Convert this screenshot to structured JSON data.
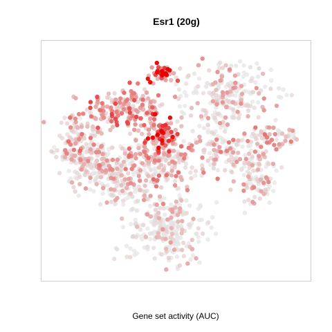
{
  "chart_data": {
    "type": "scatter",
    "title": "Esr1 (20g)",
    "xlabel": "Gene set activity (AUC)",
    "ylabel": "",
    "axes_shown": false,
    "grid": false,
    "legend": "none",
    "colors": {
      "low": "#e6e6e6",
      "high": "#e60000",
      "frame": "#cfcfcf"
    },
    "color_scale": "Gene set activity (AUC) low → high",
    "clusters": [
      {
        "name": "top-left",
        "cx": 0.3,
        "cy": 0.73,
        "sx": 0.08,
        "sy": 0.05,
        "n": 180,
        "act": 0.45
      },
      {
        "name": "left-wing",
        "cx": 0.12,
        "cy": 0.57,
        "sx": 0.05,
        "sy": 0.07,
        "n": 160,
        "act": 0.25
      },
      {
        "name": "left-lower",
        "cx": 0.2,
        "cy": 0.47,
        "sx": 0.06,
        "sy": 0.06,
        "n": 160,
        "act": 0.15
      },
      {
        "name": "center-top-hotspot",
        "cx": 0.45,
        "cy": 0.89,
        "sx": 0.025,
        "sy": 0.02,
        "n": 40,
        "act": 0.95
      },
      {
        "name": "center-hotspot",
        "cx": 0.45,
        "cy": 0.62,
        "sx": 0.03,
        "sy": 0.04,
        "n": 70,
        "act": 0.85
      },
      {
        "name": "center",
        "cx": 0.43,
        "cy": 0.5,
        "sx": 0.08,
        "sy": 0.07,
        "n": 200,
        "act": 0.3
      },
      {
        "name": "top-right",
        "cx": 0.7,
        "cy": 0.8,
        "sx": 0.09,
        "sy": 0.07,
        "n": 220,
        "act": 0.1
      },
      {
        "name": "right-middle",
        "cx": 0.68,
        "cy": 0.55,
        "sx": 0.07,
        "sy": 0.06,
        "n": 130,
        "act": 0.2
      },
      {
        "name": "far-right",
        "cx": 0.89,
        "cy": 0.61,
        "sx": 0.05,
        "sy": 0.025,
        "n": 60,
        "act": 0.25
      },
      {
        "name": "right-lower",
        "cx": 0.82,
        "cy": 0.45,
        "sx": 0.04,
        "sy": 0.07,
        "n": 110,
        "act": 0.12
      },
      {
        "name": "bottom",
        "cx": 0.47,
        "cy": 0.2,
        "sx": 0.08,
        "sy": 0.08,
        "n": 260,
        "act": 0.03
      },
      {
        "name": "bottom-left-link",
        "cx": 0.32,
        "cy": 0.36,
        "sx": 0.05,
        "sy": 0.05,
        "n": 70,
        "act": 0.05
      }
    ]
  }
}
